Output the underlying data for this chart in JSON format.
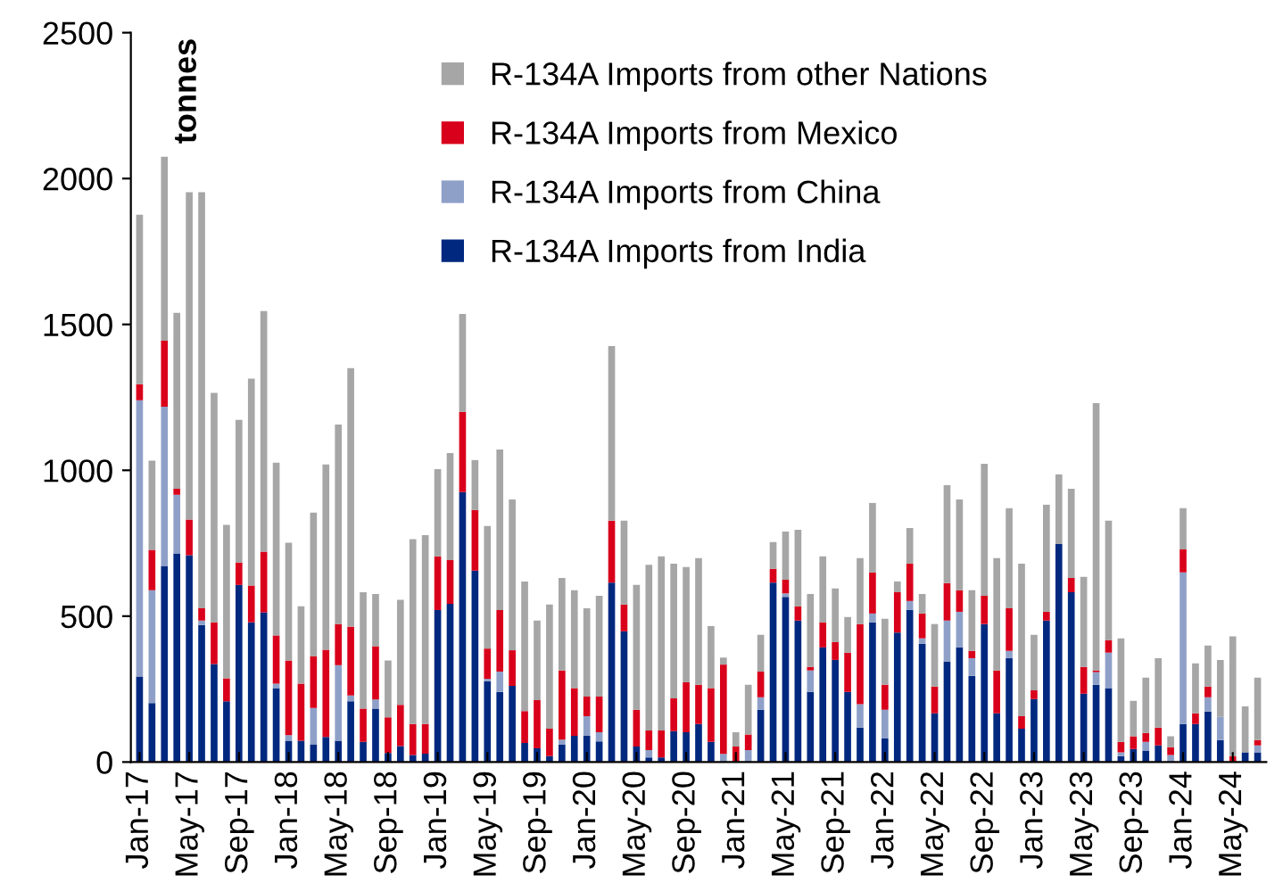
{
  "chart_data": {
    "type": "bar",
    "stacked": true,
    "categories": [
      "Jan-17",
      null,
      null,
      null,
      "May-17",
      null,
      null,
      null,
      "Sep-17",
      null,
      null,
      null,
      "Jan-18",
      null,
      null,
      null,
      "May-18",
      null,
      null,
      null,
      "Sep-18",
      null,
      null,
      null,
      "Jan-19",
      null,
      null,
      null,
      "May-19",
      null,
      null,
      null,
      "Sep-19",
      null,
      null,
      null,
      "Jan-20",
      null,
      null,
      null,
      "May-20",
      null,
      null,
      null,
      "Sep-20",
      null,
      null,
      null,
      "Jan-21",
      null,
      null,
      null,
      "May-21",
      null,
      null,
      null,
      "Sep-21",
      null,
      null,
      null,
      "Jan-22",
      null,
      null,
      null,
      "May-22",
      null,
      null,
      null,
      "Sep-22",
      null,
      null,
      null,
      "Jan-23",
      null,
      null,
      null,
      "May-23",
      null,
      null,
      null,
      "Sep-23",
      null,
      null,
      null,
      "Jan-24",
      null,
      null,
      null,
      "May-24",
      null,
      null
    ],
    "series": [
      {
        "name": "R-134A Imports from India",
        "color": "#00287f",
        "values": [
          293,
          202,
          672,
          715,
          709,
          470,
          336,
          208,
          607,
          479,
          513,
          253,
          73,
          73,
          61,
          86,
          73,
          208,
          69,
          183,
          31,
          55,
          24,
          29,
          521,
          542,
          925,
          656,
          277,
          240,
          261,
          65,
          47,
          20,
          59,
          90,
          90,
          71,
          615,
          448,
          53,
          16,
          16,
          106,
          102,
          130,
          69,
          0,
          0,
          0,
          179,
          615,
          566,
          485,
          240,
          393,
          350,
          240,
          118,
          479,
          81,
          444,
          521,
          405,
          167,
          344,
          393,
          295,
          473,
          167,
          356,
          114,
          216,
          485,
          747,
          582,
          234,
          265,
          253,
          20,
          45,
          39,
          57,
          0,
          130,
          130,
          173,
          75,
          0,
          33,
          33
        ]
      },
      {
        "name": "R-134A Imports from China",
        "color": "#8fa0c8",
        "values": [
          947,
          387,
          546,
          201,
          0,
          15,
          0,
          0,
          0,
          0,
          0,
          16,
          19,
          0,
          124,
          0,
          259,
          20,
          0,
          31,
          0,
          0,
          0,
          0,
          0,
          0,
          0,
          0,
          8,
          70,
          0,
          0,
          0,
          0,
          18,
          0,
          67,
          31,
          0,
          0,
          0,
          25,
          0,
          0,
          0,
          0,
          0,
          28,
          0,
          41,
          43,
          0,
          12,
          0,
          74,
          0,
          0,
          0,
          80,
          30,
          98,
          0,
          31,
          19,
          0,
          141,
          122,
          61,
          0,
          0,
          25,
          0,
          0,
          0,
          0,
          0,
          0,
          43,
          122,
          13,
          0,
          30,
          0,
          24,
          520,
          0,
          49,
          80,
          0,
          0,
          24
        ]
      },
      {
        "name": "R-134A Imports from Mexico",
        "color": "#d9001b",
        "values": [
          55,
          138,
          226,
          21,
          122,
          42,
          143,
          79,
          77,
          126,
          208,
          165,
          256,
          196,
          178,
          299,
          141,
          236,
          114,
          183,
          122,
          141,
          106,
          101,
          184,
          150,
          275,
          208,
          104,
          211,
          122,
          110,
          165,
          94,
          237,
          163,
          67,
          122,
          212,
          92,
          126,
          67,
          92,
          112,
          171,
          135,
          184,
          306,
          53,
          53,
          88,
          47,
          47,
          49,
          12,
          86,
          61,
          135,
          275,
          141,
          86,
          138,
          128,
          85,
          92,
          128,
          74,
          25,
          97,
          147,
          146,
          43,
          30,
          30,
          0,
          49,
          92,
          6,
          43,
          36,
          43,
          31,
          61,
          27,
          79,
          37,
          37,
          0,
          20,
          0,
          18
        ]
      },
      {
        "name": "R-134A Imports from other Nations",
        "color": "#a6a6a6",
        "values": [
          581,
          306,
          631,
          603,
          1122,
          1426,
          786,
          526,
          489,
          709,
          825,
          592,
          404,
          265,
          492,
          635,
          684,
          886,
          399,
          179,
          195,
          360,
          634,
          648,
          299,
          367,
          336,
          171,
          420,
          550,
          517,
          444,
          273,
          426,
          317,
          336,
          303,
          346,
          599,
          287,
          428,
          568,
          597,
          462,
          395,
          434,
          213,
          24,
          49,
          171,
          126,
          92,
          165,
          262,
          250,
          226,
          184,
          122,
          226,
          238,
          226,
          37,
          122,
          67,
          214,
          336,
          311,
          208,
          452,
          385,
          343,
          523,
          190,
          367,
          239,
          306,
          309,
          916,
          409,
          355,
          122,
          189,
          238,
          37,
          141,
          171,
          140,
          195,
          411,
          158,
          214
        ]
      }
    ],
    "ylim": [
      0,
      2500
    ],
    "yticks": [
      0,
      500,
      1000,
      1500,
      2000,
      2500
    ],
    "annotations": [
      "tonnes"
    ],
    "legend": "top right",
    "grid": false
  }
}
